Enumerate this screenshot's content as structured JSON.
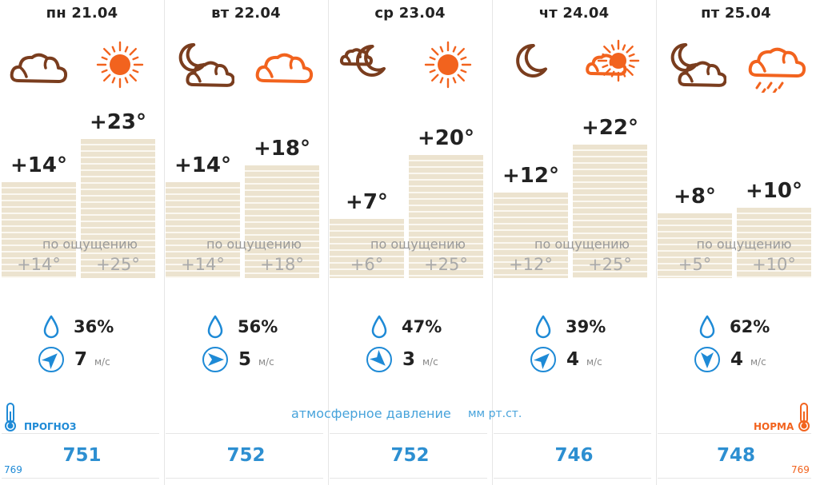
{
  "days": [
    {
      "date": "пн 21.04",
      "night_icon": "cloudy-icon",
      "day_icon": "sun-icon",
      "night_temp": "+14°",
      "day_temp": "+23°",
      "night_level": 14,
      "day_level": 23,
      "feels_night": "+14°",
      "feels_day": "+25°",
      "humidity": "36%",
      "wind_speed": "7",
      "wind_dir": "northeast",
      "pressure": "751"
    },
    {
      "date": "вт 22.04",
      "night_icon": "moon-cloud-icon",
      "day_icon": "cloudy-icon",
      "night_temp": "+14°",
      "day_temp": "+18°",
      "night_level": 14,
      "day_level": 18,
      "feels_night": "+14°",
      "feels_day": "+18°",
      "humidity": "56%",
      "wind_speed": "5",
      "wind_dir": "east",
      "pressure": "752"
    },
    {
      "date": "ср 23.04",
      "night_icon": "cloud-moon-icon",
      "day_icon": "sun-icon",
      "night_temp": "+7°",
      "day_temp": "+20°",
      "night_level": 7,
      "day_level": 20,
      "feels_night": "+6°",
      "feels_day": "+25°",
      "humidity": "47%",
      "wind_speed": "3",
      "wind_dir": "southeast",
      "pressure": "752"
    },
    {
      "date": "чт 24.04",
      "night_icon": "moon-icon",
      "day_icon": "sun-cloud-icon",
      "night_temp": "+12°",
      "day_temp": "+22°",
      "night_level": 12,
      "day_level": 22,
      "feels_night": "+12°",
      "feels_day": "+25°",
      "humidity": "39%",
      "wind_speed": "4",
      "wind_dir": "northeast",
      "pressure": "746"
    },
    {
      "date": "пт 25.04",
      "night_icon": "moon-cloud-icon",
      "day_icon": "rain-cloud-icon",
      "night_temp": "+8°",
      "day_temp": "+10°",
      "night_level": 8,
      "day_level": 10,
      "feels_night": "+5°",
      "feels_day": "+10°",
      "humidity": "62%",
      "wind_speed": "4",
      "wind_dir": "south",
      "pressure": "748"
    }
  ],
  "labels": {
    "feels_like": "по ощущению",
    "wind_unit": "м/с",
    "pressure_title": "атмосферное давление",
    "pressure_unit": "мм рт.ст.",
    "forecast": "ПРОГНОЗ",
    "norm": "НОРМА",
    "scale_left": "769",
    "scale_right": "769"
  },
  "colors": {
    "night_icon": "#7a3d1e",
    "day_icon": "#f2631e",
    "accent_blue": "#1e8ad6",
    "bar": "#ece3cf"
  }
}
